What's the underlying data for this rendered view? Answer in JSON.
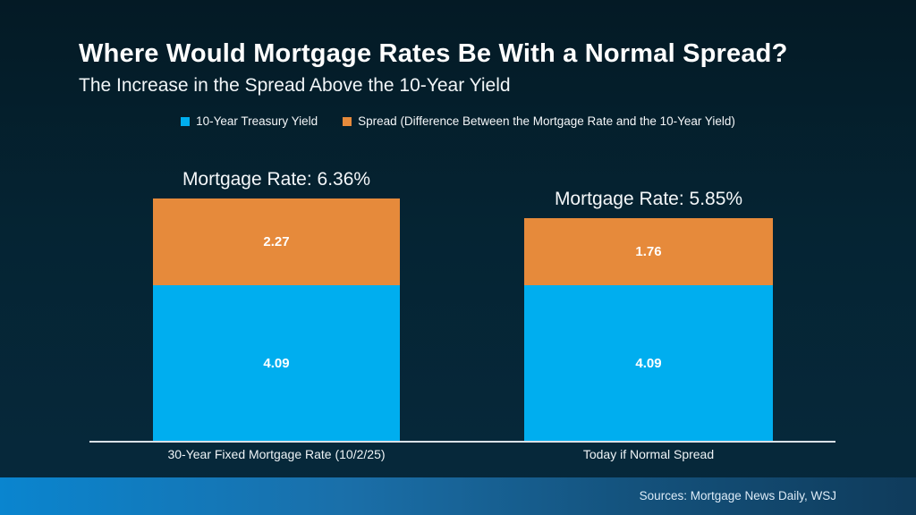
{
  "title": "Where Would Mortgage Rates Be With a Normal Spread?",
  "subtitle": "The Increase in the Spread Above the 10-Year Yield",
  "legend": [
    {
      "label": "10-Year Treasury Yield",
      "color": "#00AEEF"
    },
    {
      "label": "Spread (Difference Between the Mortgage Rate and the 10-Year Yield)",
      "color": "#E68A3B"
    }
  ],
  "chart_data": {
    "type": "bar",
    "stacked": true,
    "title": "Where Would Mortgage Rates Be With a Normal Spread?",
    "subtitle": "The Increase in the Spread Above the 10-Year Yield",
    "categories": [
      "30-Year Fixed Mortgage Rate (10/2/25)",
      "Today if Normal Spread"
    ],
    "series": [
      {
        "name": "10-Year Treasury Yield",
        "color": "#00AEEF",
        "values": [
          4.09,
          4.09
        ]
      },
      {
        "name": "Spread (Difference Between the Mortgage Rate and the 10-Year Yield)",
        "color": "#E68A3B",
        "values": [
          2.27,
          1.76
        ]
      }
    ],
    "totals": [
      6.36,
      5.85
    ],
    "total_labels": [
      "Mortgage Rate: 6.36%",
      "Mortgage Rate: 5.85%"
    ],
    "ylim": [
      0,
      7
    ],
    "grid": "off",
    "legend_position": "top-center",
    "axis_line_color": "#D9E1E7",
    "background_color": "#052433"
  },
  "footer": {
    "sources": "Sources: Mortgage News Daily, WSJ"
  }
}
